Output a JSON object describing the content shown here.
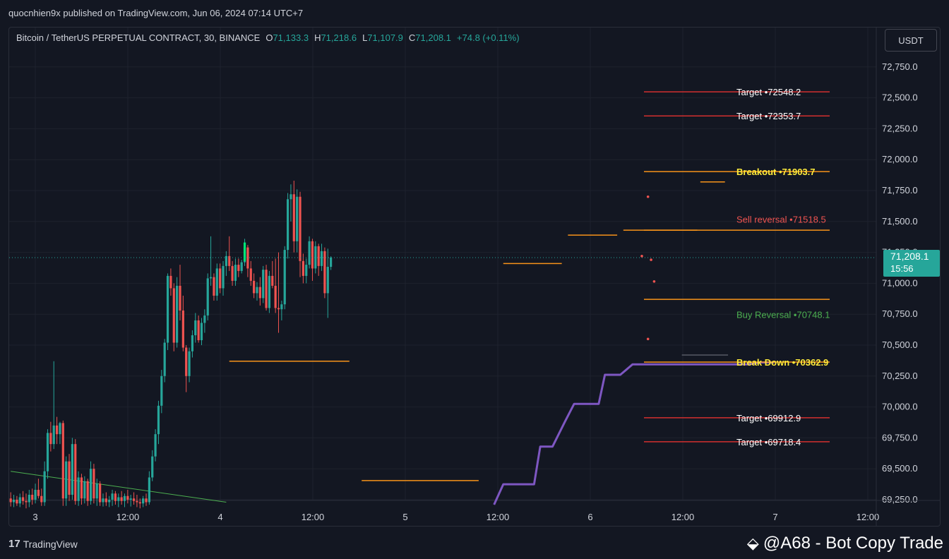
{
  "publisher_line": "quocnhien9x published on TradingView.com, Jun 06, 2024 07:14 UTC+7",
  "legend": {
    "symbol": "Bitcoin / TetherUS PERPETUAL CONTRACT, 30, BINANCE",
    "o_label": "O",
    "o_value": "71,133.3",
    "h_label": "H",
    "h_value": "71,218.6",
    "l_label": "L",
    "l_value": "71,107.9",
    "c_label": "C",
    "c_value": "71,208.1",
    "change": "+74.8 (+0.11%)"
  },
  "currency_button": "USDT",
  "price_badge": {
    "price": "71,208.1",
    "countdown": "15:56"
  },
  "footer": {
    "logo_text": "TradingView",
    "logo_mark": "17",
    "watermark": "@A68 - Bot Copy Trade"
  },
  "colors": {
    "background": "#131722",
    "up": "#26a69a",
    "down": "#ef5350",
    "orange": "#f7931a",
    "red_line": "#d32f2f",
    "yellow": "#ffeb3b",
    "green_label": "#4caf50",
    "purple": "#7e57c2"
  },
  "chart_data": {
    "type": "candlestick",
    "timeframe": "30",
    "x_ticks": [
      "3",
      "12:00",
      "4",
      "12:00",
      "5",
      "12:00",
      "6",
      "12:00",
      "7",
      "12:00"
    ],
    "y_ticks": [
      "69,250.0",
      "69,500.0",
      "69,750.0",
      "70,000.0",
      "70,250.0",
      "70,500.0",
      "70,750.0",
      "71,000.0",
      "71,250.0",
      "71,500.0",
      "71,750.0",
      "72,000.0",
      "72,250.0",
      "72,500.0",
      "72,750.0"
    ],
    "ylim": [
      69210,
      72900
    ],
    "current_price": 71208.1,
    "levels": [
      {
        "name": "Target",
        "text": "Target •72548.2",
        "price": 72548.2,
        "style": "red"
      },
      {
        "name": "Target",
        "text": "Target •72353.7",
        "price": 72353.7,
        "style": "red"
      },
      {
        "name": "Breakout",
        "text": "Breakout •71903.7",
        "price": 71903.7,
        "style": "yellow"
      },
      {
        "name": "Sell reversal",
        "text": "Sell reversal •71518.5",
        "price": 71518.5,
        "style": "sell"
      },
      {
        "name": "Buy Reversal",
        "text": "Buy Reversal •70748.1",
        "price": 70748.1,
        "style": "buy"
      },
      {
        "name": "Break Down",
        "text": "Break Down •70362.9",
        "price": 70362.9,
        "style": "yellow"
      },
      {
        "name": "Target",
        "text": "Target •69912.9",
        "price": 69912.9,
        "style": "red"
      },
      {
        "name": "Target",
        "text": "Target •69718.4",
        "price": 69718.4,
        "style": "red"
      }
    ],
    "candles": [
      [
        69260,
        69310,
        69195,
        69230
      ],
      [
        69230,
        69290,
        69190,
        69250
      ],
      [
        69250,
        69280,
        69200,
        69220
      ],
      [
        69220,
        69300,
        69190,
        69270
      ],
      [
        69270,
        69320,
        69210,
        69240
      ],
      [
        69240,
        69300,
        69180,
        69230
      ],
      [
        69230,
        69330,
        69190,
        69290
      ],
      [
        69290,
        69340,
        69210,
        69250
      ],
      [
        69250,
        69380,
        69220,
        69330
      ],
      [
        69330,
        69420,
        69260,
        69280
      ],
      [
        69280,
        69340,
        69200,
        69230
      ],
      [
        69230,
        69560,
        69200,
        69480
      ],
      [
        69480,
        69820,
        69420,
        69790
      ],
      [
        69790,
        69880,
        69640,
        69700
      ],
      [
        69700,
        70370,
        69660,
        69850
      ],
      [
        69850,
        69920,
        69700,
        69780
      ],
      [
        69780,
        69880,
        69700,
        69870
      ],
      [
        69870,
        69890,
        69200,
        69260
      ],
      [
        69260,
        69600,
        69200,
        69560
      ],
      [
        69560,
        69620,
        69240,
        69290
      ],
      [
        69290,
        69750,
        69250,
        69700
      ],
      [
        69700,
        69740,
        69210,
        69240
      ],
      [
        69240,
        69480,
        69200,
        69430
      ],
      [
        69430,
        69460,
        69210,
        69260
      ],
      [
        69260,
        69440,
        69220,
        69400
      ],
      [
        69400,
        69420,
        69200,
        69240
      ],
      [
        69240,
        69560,
        69210,
        69500
      ],
      [
        69500,
        69540,
        69220,
        69260
      ],
      [
        69260,
        69420,
        69200,
        69380
      ],
      [
        69380,
        69400,
        69200,
        69230
      ],
      [
        69230,
        69300,
        69195,
        69260
      ],
      [
        69260,
        69310,
        69200,
        69230
      ],
      [
        69230,
        69280,
        69190,
        69250
      ],
      [
        69250,
        69330,
        69200,
        69300
      ],
      [
        69300,
        69320,
        69210,
        69240
      ],
      [
        69240,
        69300,
        69190,
        69270
      ],
      [
        69270,
        69320,
        69210,
        69240
      ],
      [
        69240,
        69300,
        69190,
        69280
      ],
      [
        69280,
        69330,
        69220,
        69250
      ],
      [
        69250,
        69290,
        69195,
        69260
      ],
      [
        69260,
        69310,
        69210,
        69240
      ],
      [
        69240,
        69290,
        69190,
        69230
      ],
      [
        69230,
        69260,
        69180,
        69220
      ],
      [
        69220,
        69280,
        69190,
        69260
      ],
      [
        69260,
        69300,
        69200,
        69230
      ],
      [
        69230,
        69480,
        69210,
        69430
      ],
      [
        69430,
        69650,
        69400,
        69600
      ],
      [
        69600,
        69820,
        69560,
        69780
      ],
      [
        69780,
        70050,
        69700,
        70010
      ],
      [
        70010,
        70300,
        69950,
        70250
      ],
      [
        70250,
        70550,
        70200,
        70520
      ],
      [
        70520,
        71080,
        70460,
        71060
      ],
      [
        71060,
        71120,
        70900,
        70960
      ],
      [
        70960,
        71000,
        70450,
        70520
      ],
      [
        70520,
        71050,
        70480,
        70980
      ],
      [
        70980,
        71150,
        70700,
        70780
      ],
      [
        70780,
        70900,
        70450,
        70480
      ],
      [
        70480,
        70500,
        70120,
        70250
      ],
      [
        70250,
        70480,
        70200,
        70450
      ],
      [
        70450,
        70620,
        70400,
        70580
      ],
      [
        70580,
        70760,
        70520,
        70700
      ],
      [
        70700,
        70740,
        70520,
        70540
      ],
      [
        70540,
        70720,
        70500,
        70680
      ],
      [
        70680,
        70790,
        70600,
        70740
      ],
      [
        70740,
        71080,
        70700,
        71040
      ],
      [
        71040,
        71380,
        70980,
        71050
      ],
      [
        71050,
        71080,
        70860,
        70900
      ],
      [
        70900,
        71160,
        70860,
        71120
      ],
      [
        71120,
        71160,
        70920,
        70960
      ],
      [
        70960,
        71180,
        70900,
        71140
      ],
      [
        71140,
        71260,
        71060,
        71220
      ],
      [
        71220,
        71380,
        71100,
        71140
      ],
      [
        71140,
        71180,
        70980,
        71020
      ],
      [
        71020,
        71200,
        70980,
        71150
      ],
      [
        71150,
        71200,
        71050,
        71100
      ],
      [
        71100,
        71190,
        71080,
        71170
      ],
      [
        71170,
        71360,
        71140,
        71290
      ],
      [
        71290,
        71310,
        71050,
        71120
      ],
      [
        71120,
        71180,
        70980,
        71020
      ],
      [
        71020,
        71080,
        70880,
        70920
      ],
      [
        70920,
        71010,
        70860,
        70970
      ],
      [
        70970,
        71050,
        70820,
        70880
      ],
      [
        70880,
        71140,
        70840,
        71110
      ],
      [
        71110,
        71150,
        70780,
        70800
      ],
      [
        70800,
        71100,
        70760,
        71060
      ],
      [
        71060,
        71180,
        70960,
        70980
      ],
      [
        70980,
        71200,
        70760,
        70800
      ],
      [
        70800,
        71250,
        70600,
        70790
      ],
      [
        70790,
        70860,
        70700,
        70830
      ],
      [
        70830,
        71300,
        70790,
        71270
      ],
      [
        71270,
        71730,
        71200,
        71680
      ],
      [
        71680,
        71800,
        71500,
        71720
      ],
      [
        71720,
        71830,
        71250,
        71340
      ],
      [
        71340,
        71760,
        71250,
        71700
      ],
      [
        71700,
        71740,
        71050,
        71180
      ],
      [
        71180,
        71240,
        71000,
        71060
      ],
      [
        71060,
        71200,
        71000,
        71150
      ],
      [
        71150,
        71380,
        71120,
        71340
      ],
      [
        71340,
        71360,
        71020,
        71120
      ],
      [
        71120,
        71340,
        71080,
        71300
      ],
      [
        71300,
        71320,
        71060,
        71140
      ],
      [
        71140,
        71320,
        71100,
        71260
      ],
      [
        71260,
        71290,
        70880,
        70920
      ],
      [
        70920,
        71280,
        70720,
        71133.3
      ],
      [
        71133.3,
        71218.6,
        71107.9,
        71208.1
      ]
    ],
    "orange_segments": [
      {
        "x_from": 71,
        "x_to": 110,
        "price": 70370
      },
      {
        "x_from": 114,
        "x_to": 152,
        "price": 69405
      },
      {
        "x_from": 160,
        "x_to": 179,
        "price": 71160
      },
      {
        "x_from": 181,
        "x_to": 197,
        "price": 71390
      },
      {
        "x_from": 199,
        "x_to": 223,
        "price": 71430
      },
      {
        "x_from": 224,
        "x_to": 232,
        "price": 71820
      }
    ],
    "gray_segment": {
      "x_from": 218,
      "x_to": 233,
      "price": 70420
    },
    "green_trendline": [
      [
        0,
        69480
      ],
      [
        70,
        69230
      ]
    ],
    "purple_line": [
      [
        157,
        69210
      ],
      [
        160,
        69375
      ],
      [
        170,
        69375
      ],
      [
        172,
        69680
      ],
      [
        176,
        69680
      ],
      [
        180,
        69880
      ],
      [
        183,
        70025
      ],
      [
        191,
        70025
      ],
      [
        193,
        70260
      ],
      [
        198,
        70260
      ],
      [
        202,
        70345
      ],
      [
        240,
        70345
      ],
      [
        243,
        70360
      ],
      [
        248,
        70360
      ]
    ]
  }
}
